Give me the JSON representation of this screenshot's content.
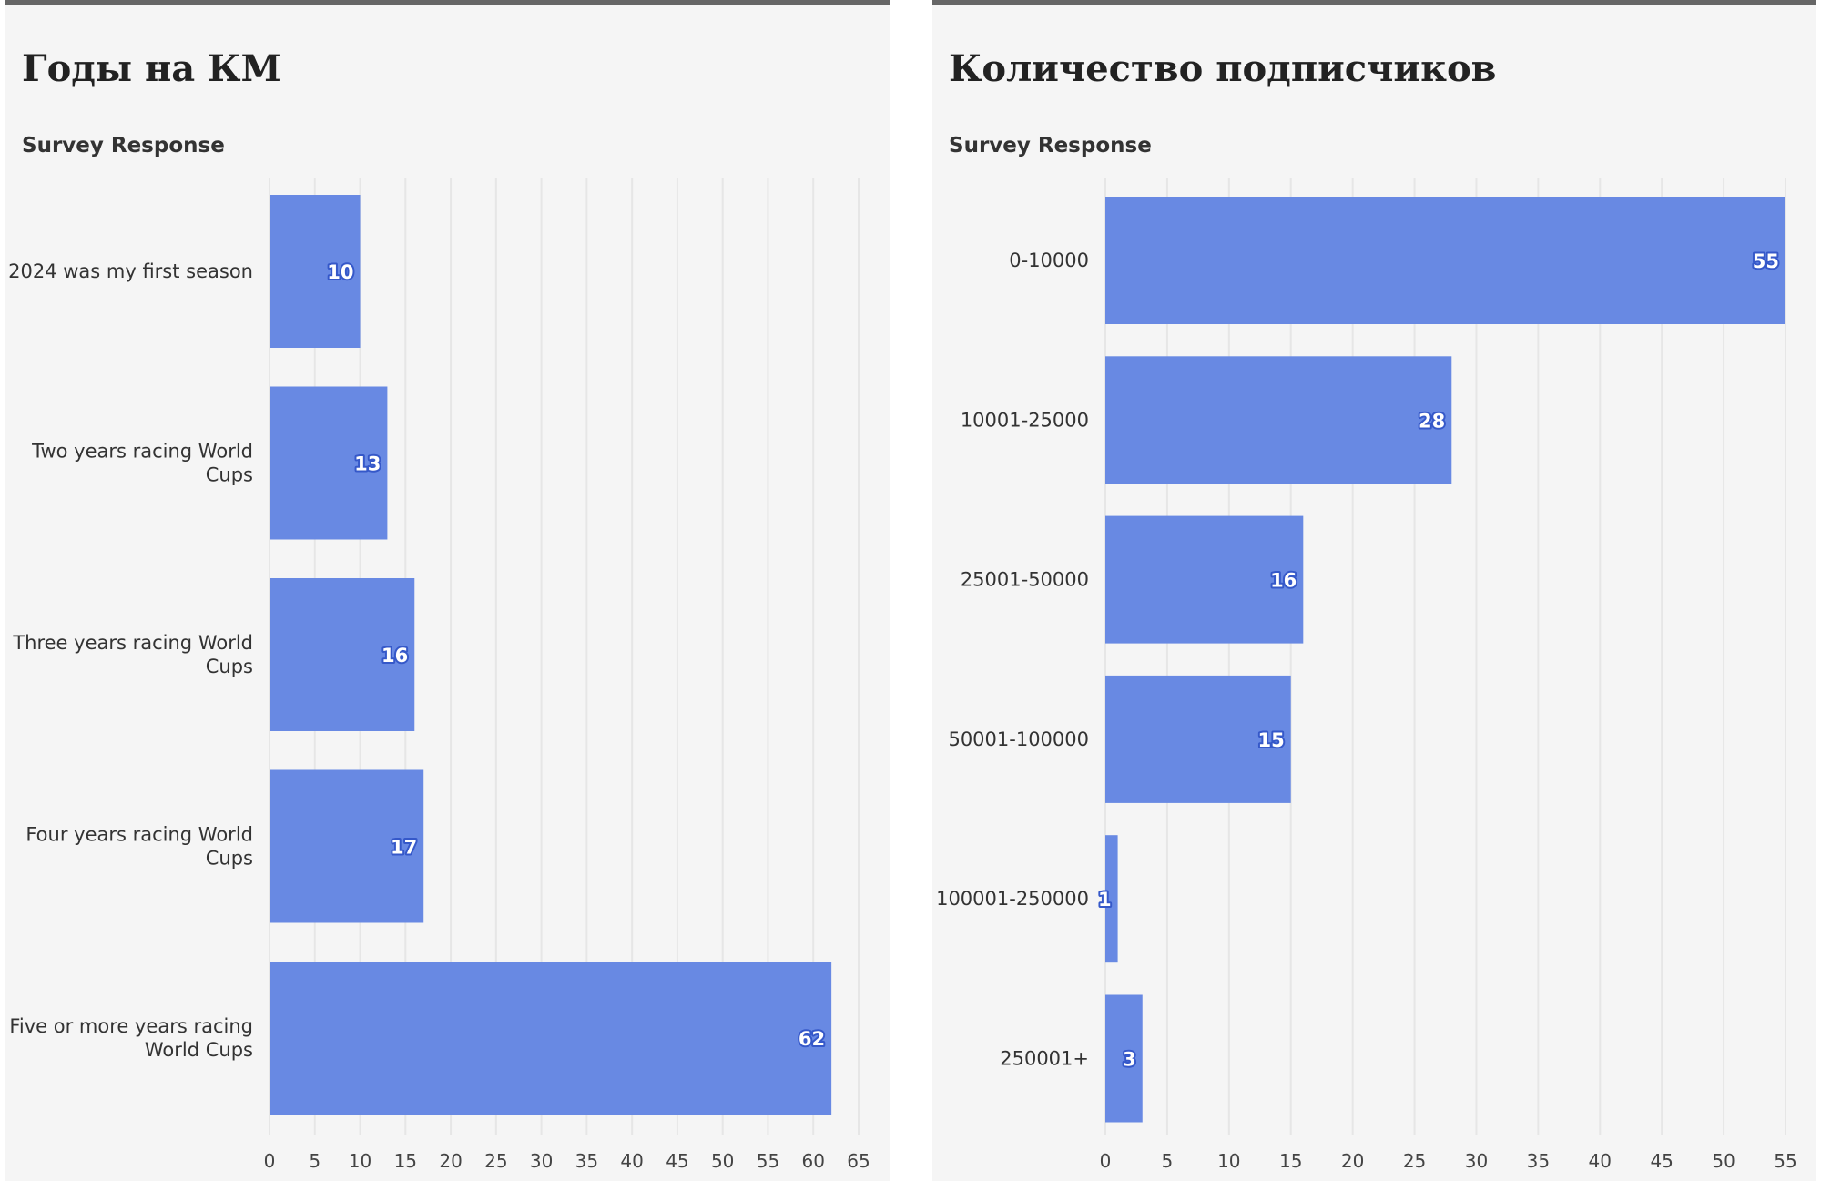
{
  "chart_data": [
    {
      "type": "bar",
      "orientation": "horizontal",
      "title": "Годы на КМ",
      "subtitle": "Survey Response",
      "categories": [
        "2024 was my first season",
        "Two years racing World Cups",
        "Three years racing World Cups",
        "Four years racing World Cups",
        "Five or more years racing World Cups"
      ],
      "category_lines": [
        [
          "2024 was my first season"
        ],
        [
          "Two years racing World",
          "Cups"
        ],
        [
          "Three years racing World",
          "Cups"
        ],
        [
          "Four years racing World",
          "Cups"
        ],
        [
          "Five or more years racing",
          "World Cups"
        ]
      ],
      "values": [
        10,
        13,
        16,
        17,
        62
      ],
      "xlim": [
        0,
        65
      ],
      "xticks": [
        0,
        5,
        10,
        15,
        20,
        25,
        30,
        35,
        40,
        45,
        50,
        55,
        60,
        65
      ],
      "grid": true,
      "color": "#6889e3"
    },
    {
      "type": "bar",
      "orientation": "horizontal",
      "title": "Количество подписчиков",
      "subtitle": "Survey Response",
      "categories": [
        "0-10000",
        "10001-25000",
        "25001-50000",
        "50001-100000",
        "100001-250000",
        "250001+"
      ],
      "category_lines": [
        [
          "0-10000"
        ],
        [
          "10001-25000"
        ],
        [
          "25001-50000"
        ],
        [
          "50001-100000"
        ],
        [
          "100001-250000"
        ],
        [
          "250001+"
        ]
      ],
      "values": [
        55,
        28,
        16,
        15,
        1,
        3
      ],
      "xlim": [
        0,
        55
      ],
      "xticks": [
        0,
        5,
        10,
        15,
        20,
        25,
        30,
        35,
        40,
        45,
        50,
        55
      ],
      "grid": true,
      "color": "#6889e3"
    }
  ]
}
